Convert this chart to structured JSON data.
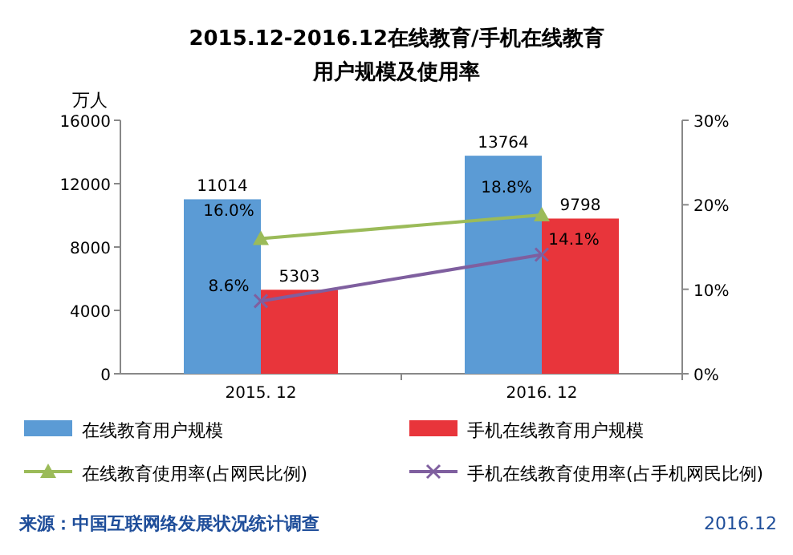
{
  "chart_data": {
    "type": "bar",
    "title": "2015.12-2016.12在线教育/手机在线教育",
    "subtitle": "用户规模及使用率",
    "ylabel": "万人",
    "categories": [
      "2015. 12",
      "2016. 12"
    ],
    "series": [
      {
        "name": "在线教育用户规模",
        "color": "#5b9bd5",
        "values": [
          11014,
          13764
        ],
        "value_labels": [
          "11014",
          "13764"
        ]
      },
      {
        "name": "手机在线教育用户规模",
        "color": "#e8353b",
        "values": [
          5303,
          9798
        ],
        "value_labels": [
          "5303",
          "9798"
        ]
      },
      {
        "name": "在线教育使用率(占网民比例)",
        "type": "line",
        "axis": "y2",
        "marker": "triangle",
        "color": "#9bbb59",
        "values": [
          16.0,
          18.8
        ],
        "value_labels": [
          "16.0%",
          "18.8%"
        ]
      },
      {
        "name": "手机在线教育使用率(占手机网民比例)",
        "type": "line",
        "axis": "y2",
        "marker": "cross",
        "color": "#7f5f9f",
        "values": [
          8.6,
          14.1
        ],
        "value_labels": [
          "8.6%",
          "14.1%"
        ]
      }
    ],
    "ylim": [
      0,
      16000
    ],
    "yticks": [
      0,
      4000,
      8000,
      12000,
      16000
    ],
    "y2lim": [
      0,
      30
    ],
    "y2ticks": [
      {
        "value": 0,
        "label": "0%"
      },
      {
        "value": 10,
        "label": "10%"
      },
      {
        "value": 20,
        "label": "20%"
      },
      {
        "value": 30,
        "label": "30%"
      }
    ],
    "legend": "bottom",
    "grid": false,
    "annotations": [
      "来源：中国互联网络发展状况统计调查",
      "2016.12"
    ]
  }
}
